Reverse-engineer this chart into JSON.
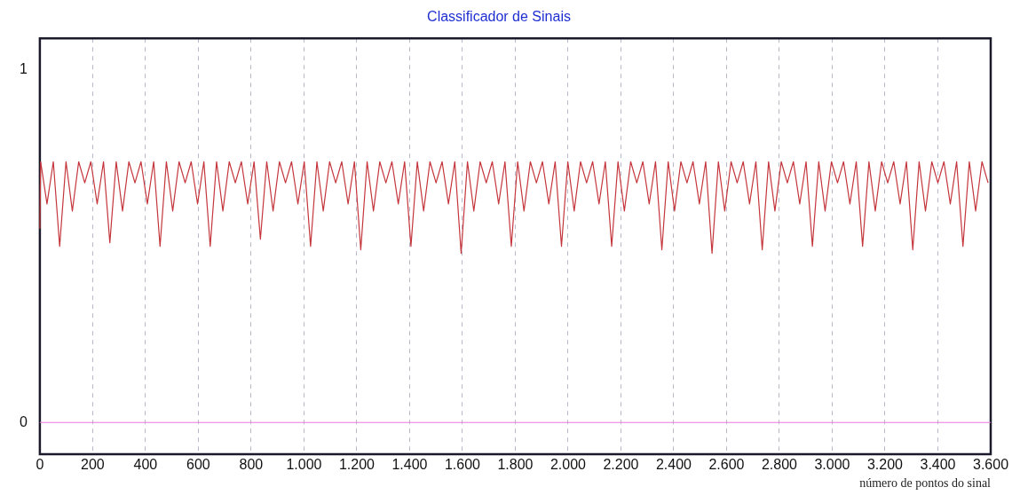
{
  "chart_data": {
    "type": "line",
    "title": "Classificador de Sinais",
    "xlabel": "número de pontos do sinal",
    "xlim": [
      0,
      3600
    ],
    "ylim": [
      -0.09,
      1.09
    ],
    "yticks": [
      0,
      1
    ],
    "xticks": [
      0,
      200,
      400,
      600,
      800,
      {
        "value": 1000,
        "label": "1.000"
      },
      {
        "value": 1200,
        "label": "1.200"
      },
      {
        "value": 1400,
        "label": "1.400"
      },
      {
        "value": 1600,
        "label": "1.600"
      },
      {
        "value": 1800,
        "label": "1.800"
      },
      {
        "value": 2000,
        "label": "2.000"
      },
      {
        "value": 2200,
        "label": "2.200"
      },
      {
        "value": 2400,
        "label": "2.400"
      },
      {
        "value": 2600,
        "label": "2.600"
      },
      {
        "value": 2800,
        "label": "2.800"
      },
      {
        "value": 3000,
        "label": "3.000"
      },
      {
        "value": 3200,
        "label": "3.200"
      },
      {
        "value": 3400,
        "label": "3.400"
      },
      {
        "value": 3600,
        "label": "3.600"
      }
    ],
    "grid": "x",
    "legend": false,
    "marker": "none",
    "line_style": "solid",
    "series": [
      {
        "color": "#c4363c",
        "x": [
          0,
          3,
          27,
          51,
          75,
          99,
          123,
          147,
          170,
          193,
          217,
          241,
          265,
          289,
          313,
          337,
          360,
          383,
          407,
          431,
          455,
          479,
          503,
          527,
          550,
          573,
          597,
          621,
          645,
          669,
          693,
          717,
          740,
          763,
          787,
          811,
          835,
          859,
          883,
          907,
          930,
          953,
          977,
          1001,
          1025,
          1049,
          1073,
          1097,
          1120,
          1143,
          1167,
          1191,
          1215,
          1239,
          1263,
          1287,
          1310,
          1333,
          1357,
          1381,
          1405,
          1429,
          1453,
          1477,
          1500,
          1523,
          1547,
          1571,
          1595,
          1619,
          1643,
          1667,
          1690,
          1713,
          1737,
          1761,
          1785,
          1809,
          1833,
          1857,
          1880,
          1903,
          1927,
          1951,
          1975,
          1999,
          2023,
          2047,
          2070,
          2093,
          2117,
          2141,
          2165,
          2189,
          2213,
          2237,
          2260,
          2283,
          2307,
          2331,
          2355,
          2379,
          2403,
          2427,
          2450,
          2473,
          2497,
          2521,
          2545,
          2569,
          2593,
          2617,
          2640,
          2663,
          2687,
          2711,
          2735,
          2759,
          2783,
          2807,
          2830,
          2853,
          2877,
          2901,
          2925,
          2949,
          2973,
          2997,
          3020,
          3043,
          3067,
          3091,
          3115,
          3139,
          3163,
          3187,
          3210,
          3233,
          3257,
          3281,
          3305,
          3329,
          3353,
          3377,
          3400,
          3423,
          3447,
          3471,
          3495,
          3519,
          3543,
          3567,
          3590
        ],
        "values": [
          0.55,
          0.74,
          0.62,
          0.74,
          0.5,
          0.74,
          0.6,
          0.74,
          0.68,
          0.74,
          0.62,
          0.74,
          0.51,
          0.74,
          0.6,
          0.74,
          0.68,
          0.74,
          0.62,
          0.74,
          0.5,
          0.74,
          0.6,
          0.74,
          0.68,
          0.74,
          0.62,
          0.74,
          0.5,
          0.74,
          0.6,
          0.74,
          0.68,
          0.74,
          0.62,
          0.74,
          0.52,
          0.74,
          0.6,
          0.74,
          0.68,
          0.74,
          0.62,
          0.74,
          0.5,
          0.74,
          0.6,
          0.74,
          0.68,
          0.74,
          0.62,
          0.74,
          0.49,
          0.74,
          0.6,
          0.74,
          0.68,
          0.74,
          0.62,
          0.74,
          0.5,
          0.74,
          0.6,
          0.74,
          0.68,
          0.74,
          0.62,
          0.74,
          0.48,
          0.74,
          0.6,
          0.74,
          0.68,
          0.74,
          0.62,
          0.74,
          0.5,
          0.74,
          0.6,
          0.74,
          0.68,
          0.74,
          0.62,
          0.74,
          0.5,
          0.74,
          0.6,
          0.74,
          0.68,
          0.74,
          0.62,
          0.74,
          0.5,
          0.74,
          0.6,
          0.74,
          0.68,
          0.74,
          0.62,
          0.74,
          0.49,
          0.74,
          0.6,
          0.74,
          0.68,
          0.74,
          0.62,
          0.74,
          0.48,
          0.74,
          0.6,
          0.74,
          0.68,
          0.74,
          0.62,
          0.74,
          0.49,
          0.74,
          0.6,
          0.74,
          0.68,
          0.74,
          0.62,
          0.74,
          0.5,
          0.74,
          0.6,
          0.74,
          0.68,
          0.74,
          0.62,
          0.74,
          0.5,
          0.74,
          0.6,
          0.74,
          0.68,
          0.74,
          0.62,
          0.74,
          0.49,
          0.74,
          0.6,
          0.74,
          0.68,
          0.74,
          0.62,
          0.74,
          0.5,
          0.74,
          0.6,
          0.74,
          0.68
        ]
      },
      {
        "color": "#e878e0",
        "x": [
          0,
          3600
        ],
        "values": [
          0,
          0
        ]
      }
    ]
  }
}
